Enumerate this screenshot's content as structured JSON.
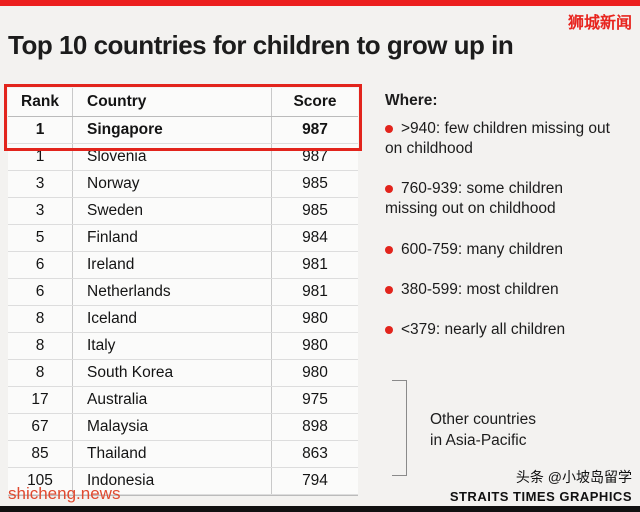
{
  "watermark": "狮城新闻",
  "chart_data": {
    "type": "table",
    "title": "Top 10 countries for children to grow up in",
    "columns": [
      "Rank",
      "Country",
      "Score"
    ],
    "rows": [
      {
        "rank": 1,
        "country": "Singapore",
        "score": 987,
        "highlight": true
      },
      {
        "rank": 1,
        "country": "Slovenia",
        "score": 987
      },
      {
        "rank": 3,
        "country": "Norway",
        "score": 985
      },
      {
        "rank": 3,
        "country": "Sweden",
        "score": 985
      },
      {
        "rank": 5,
        "country": "Finland",
        "score": 984
      },
      {
        "rank": 6,
        "country": "Ireland",
        "score": 981
      },
      {
        "rank": 6,
        "country": "Netherlands",
        "score": 981
      },
      {
        "rank": 8,
        "country": "Iceland",
        "score": 980
      },
      {
        "rank": 8,
        "country": "Italy",
        "score": 980
      },
      {
        "rank": 8,
        "country": "South Korea",
        "score": 980
      },
      {
        "rank": 17,
        "country": "Australia",
        "score": 975
      },
      {
        "rank": 67,
        "country": "Malaysia",
        "score": 898
      },
      {
        "rank": 85,
        "country": "Thailand",
        "score": 863
      },
      {
        "rank": 105,
        "country": "Indonesia",
        "score": 794
      }
    ],
    "legend_position": "right",
    "annotation": "Other countries in Asia-Pacific"
  },
  "legend": {
    "title": "Where:",
    "items": [
      ">940: few children missing out on childhood",
      "760-939: some children missing out on childhood",
      "600-759: many children",
      "380-599: most children",
      "<379: nearly all children"
    ],
    "bracket_label_line1": "Other countries",
    "bracket_label_line2": "in Asia-Pacific"
  },
  "footer": {
    "left": "shicheng.news",
    "right_line1": "头条 @小坡岛留学",
    "right_line2": "STRAITS TIMES GRAPHICS"
  },
  "colors": {
    "accent": "#e2241c",
    "background": "#f3f2f0",
    "footer_link": "#e04a30"
  }
}
